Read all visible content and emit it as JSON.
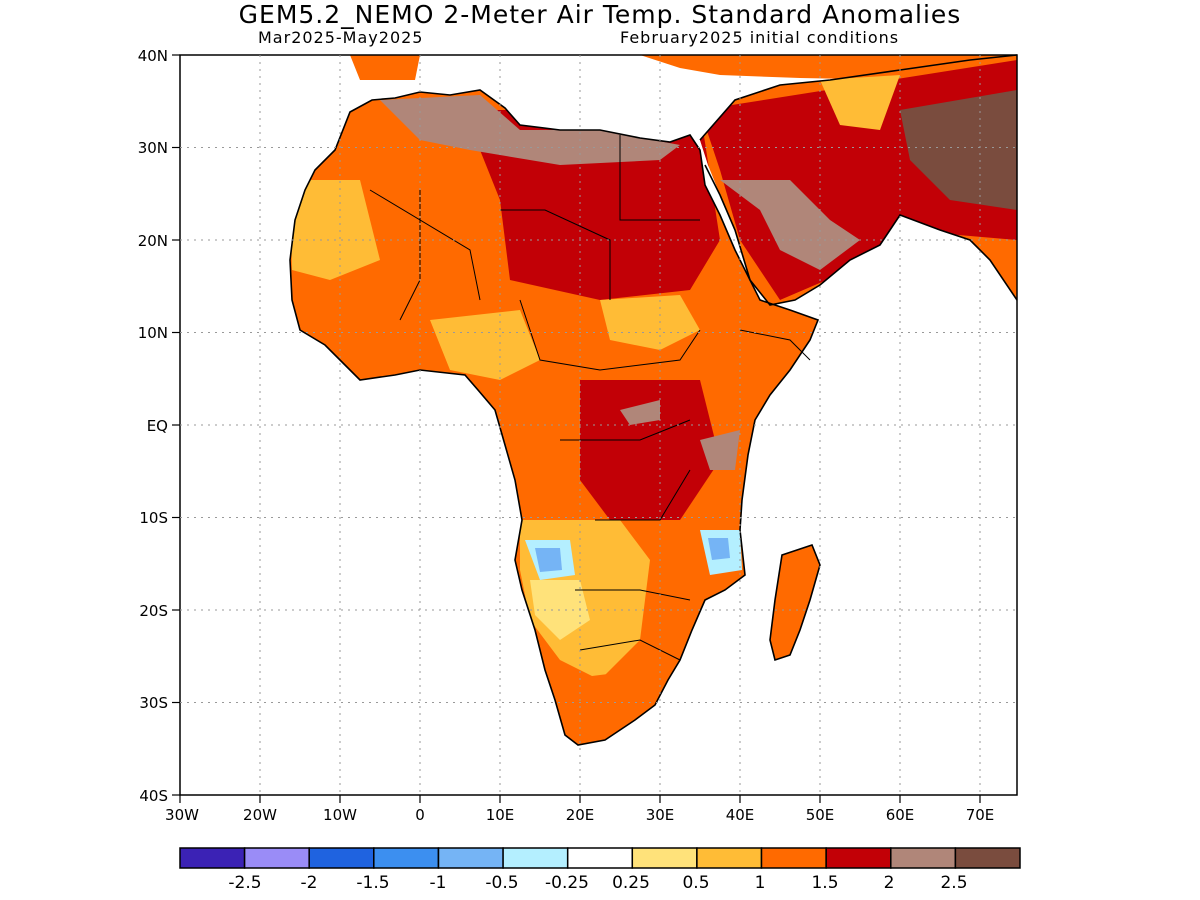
{
  "title": "GEM5.2_NEMO 2-Meter Air Temp. Standard Anomalies",
  "subtitle_left": "Mar2025-May2025",
  "subtitle_right": "February2025 initial conditions",
  "y_ticks": [
    "40N",
    "30N",
    "20N",
    "10N",
    "EQ",
    "10S",
    "20S",
    "30S",
    "40S"
  ],
  "x_ticks": [
    "30W",
    "20W",
    "10W",
    "0",
    "10E",
    "20E",
    "30E",
    "40E",
    "50E",
    "60E",
    "70E"
  ],
  "colorbar": {
    "colors": [
      "#3b22b5",
      "#9a8cf7",
      "#1f63e0",
      "#3c8ff0",
      "#75b4f5",
      "#b4efff",
      "#ffffff",
      "#ffe27a",
      "#ffbc36",
      "#ff6a00",
      "#c20006",
      "#b08679",
      "#7a4c3e"
    ],
    "labels": [
      "-2.5",
      "-2",
      "-1.5",
      "-1",
      "-0.5",
      "-0.25",
      "0.25",
      "0.5",
      "1",
      "1.5",
      "2",
      "2.5"
    ]
  },
  "map": {
    "lon_range": [
      -30,
      75
    ],
    "lat_range": [
      -40,
      40
    ],
    "grid": true,
    "region": "Africa and Middle East"
  }
}
